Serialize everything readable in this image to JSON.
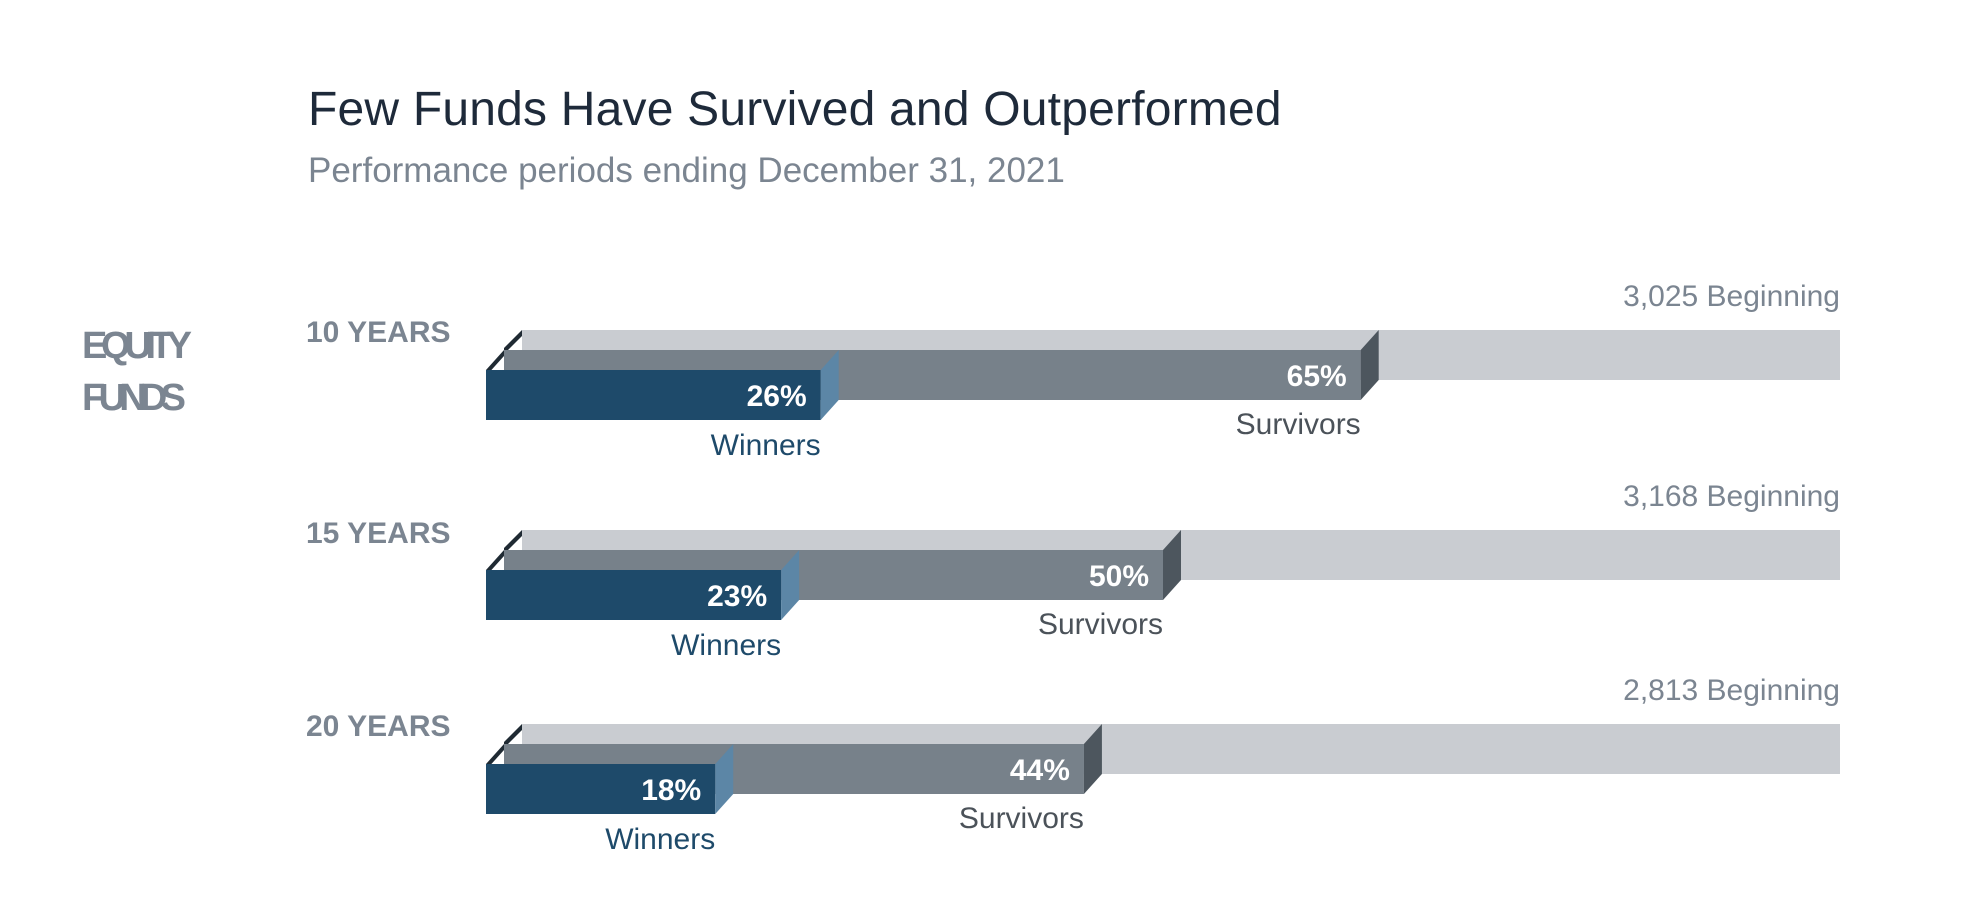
{
  "header": {
    "title": "Few Funds Have Survived and Outperformed",
    "subtitle": "Performance periods ending December 31, 2021"
  },
  "colors": {
    "beginning": "#c9ccd1",
    "survivors": "#77818a",
    "survivors_side": "#4d565e",
    "winners": "#1e4a6a",
    "winners_side": "#5c86a6",
    "row_label": "#7b8591",
    "winners_label": "#1e4a6a",
    "survivors_label": "#4b5259",
    "dark_tab": "#1f2a33"
  },
  "chart_data": {
    "type": "bar",
    "group_label_lines": [
      "EQUITY",
      "FUNDS"
    ],
    "categories": [
      "10 YEARS",
      "15 YEARS",
      "20 YEARS"
    ],
    "series": [
      {
        "name": "Survivors",
        "values": [
          65,
          50,
          44
        ],
        "labels": [
          "65%",
          "50%",
          "44%"
        ]
      },
      {
        "name": "Winners",
        "values": [
          26,
          23,
          18
        ],
        "labels": [
          "26%",
          "23%",
          "18%"
        ]
      }
    ],
    "beginning_counts": [
      3025,
      3168,
      2813
    ],
    "beginning_labels": [
      "3,025 Beginning",
      "3,168 Beginning",
      "2,813 Beginning"
    ],
    "winners_caption": "Winners",
    "survivors_caption": "Survivors",
    "unit": "%",
    "ylim": [
      0,
      100
    ]
  }
}
